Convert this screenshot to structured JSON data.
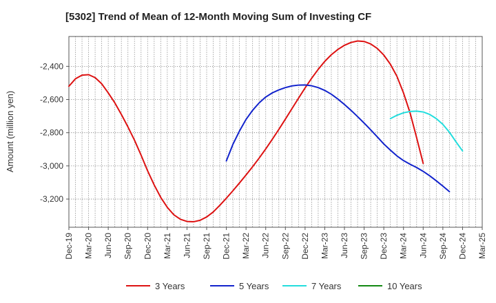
{
  "chart_data": {
    "type": "line",
    "title": "[5302]  Trend of Mean of 12-Month Moving Sum of Investing CF",
    "ylabel": "Amount (million yen)",
    "xlabel": "",
    "x_tick_labels": [
      "Dec-19",
      "Mar-20",
      "Jun-20",
      "Sep-20",
      "Dec-20",
      "Mar-21",
      "Jun-21",
      "Sep-21",
      "Dec-21",
      "Mar-22",
      "Jun-22",
      "Sep-22",
      "Dec-22",
      "Mar-23",
      "Jun-23",
      "Sep-23",
      "Dec-23",
      "Mar-24",
      "Jun-24",
      "Sep-24",
      "Dec-24",
      "Mar-25"
    ],
    "y_ticks": [
      -2400,
      -2600,
      -2800,
      -3000,
      -3200
    ],
    "y_tick_labels": [
      "-2,400",
      "-2,600",
      "-2,800",
      "-3,000",
      "-3,200"
    ],
    "ylim": [
      -3370,
      -2220
    ],
    "grid": true,
    "legend_position": "bottom",
    "series": [
      {
        "name": "3 Years",
        "color": "#dd1111",
        "points": [
          [
            0,
            -2520
          ],
          [
            1,
            -2475
          ],
          [
            2,
            -2453
          ],
          [
            3,
            -2450
          ],
          [
            4,
            -2468
          ],
          [
            5,
            -2505
          ],
          [
            6,
            -2560
          ],
          [
            7,
            -2620
          ],
          [
            8,
            -2690
          ],
          [
            9,
            -2765
          ],
          [
            10,
            -2845
          ],
          [
            11,
            -2935
          ],
          [
            12,
            -3030
          ],
          [
            13,
            -3115
          ],
          [
            14,
            -3190
          ],
          [
            15,
            -3250
          ],
          [
            16,
            -3295
          ],
          [
            17,
            -3322
          ],
          [
            18,
            -3335
          ],
          [
            19,
            -3337
          ],
          [
            20,
            -3328
          ],
          [
            21,
            -3308
          ],
          [
            22,
            -3278
          ],
          [
            23,
            -3238
          ],
          [
            24,
            -3195
          ],
          [
            25,
            -3150
          ],
          [
            26,
            -3103
          ],
          [
            27,
            -3055
          ],
          [
            28,
            -3005
          ],
          [
            29,
            -2953
          ],
          [
            30,
            -2898
          ],
          [
            31,
            -2840
          ],
          [
            32,
            -2780
          ],
          [
            33,
            -2718
          ],
          [
            34,
            -2655
          ],
          [
            35,
            -2592
          ],
          [
            36,
            -2530
          ],
          [
            37,
            -2472
          ],
          [
            38,
            -2418
          ],
          [
            39,
            -2370
          ],
          [
            40,
            -2330
          ],
          [
            41,
            -2298
          ],
          [
            42,
            -2273
          ],
          [
            43,
            -2256
          ],
          [
            44,
            -2247
          ],
          [
            45,
            -2250
          ],
          [
            46,
            -2265
          ],
          [
            47,
            -2292
          ],
          [
            48,
            -2332
          ],
          [
            49,
            -2387
          ],
          [
            50,
            -2460
          ],
          [
            51,
            -2560
          ],
          [
            52,
            -2680
          ],
          [
            53,
            -2830
          ],
          [
            54,
            -2985
          ]
        ]
      },
      {
        "name": "5 Years",
        "color": "#1122cc",
        "points": [
          [
            24,
            -2970
          ],
          [
            25,
            -2870
          ],
          [
            26,
            -2790
          ],
          [
            27,
            -2720
          ],
          [
            28,
            -2665
          ],
          [
            29,
            -2620
          ],
          [
            30,
            -2585
          ],
          [
            31,
            -2560
          ],
          [
            32,
            -2542
          ],
          [
            33,
            -2528
          ],
          [
            34,
            -2518
          ],
          [
            35,
            -2513
          ],
          [
            36,
            -2512
          ],
          [
            37,
            -2517
          ],
          [
            38,
            -2528
          ],
          [
            39,
            -2545
          ],
          [
            40,
            -2568
          ],
          [
            41,
            -2597
          ],
          [
            42,
            -2630
          ],
          [
            43,
            -2665
          ],
          [
            44,
            -2703
          ],
          [
            45,
            -2742
          ],
          [
            46,
            -2783
          ],
          [
            47,
            -2825
          ],
          [
            48,
            -2868
          ],
          [
            49,
            -2905
          ],
          [
            50,
            -2940
          ],
          [
            51,
            -2968
          ],
          [
            52,
            -2990
          ],
          [
            53,
            -3010
          ],
          [
            54,
            -3033
          ],
          [
            55,
            -3060
          ],
          [
            56,
            -3090
          ],
          [
            57,
            -3122
          ],
          [
            58,
            -3155
          ]
        ]
      },
      {
        "name": "7 Years",
        "color": "#22dddd",
        "points": [
          [
            49,
            -2715
          ],
          [
            50,
            -2695
          ],
          [
            51,
            -2680
          ],
          [
            52,
            -2672
          ],
          [
            53,
            -2670
          ],
          [
            54,
            -2675
          ],
          [
            55,
            -2690
          ],
          [
            56,
            -2715
          ],
          [
            57,
            -2750
          ],
          [
            58,
            -2797
          ],
          [
            59,
            -2855
          ],
          [
            60,
            -2910
          ]
        ]
      },
      {
        "name": "10 Years",
        "color": "#118811",
        "points": []
      }
    ]
  }
}
